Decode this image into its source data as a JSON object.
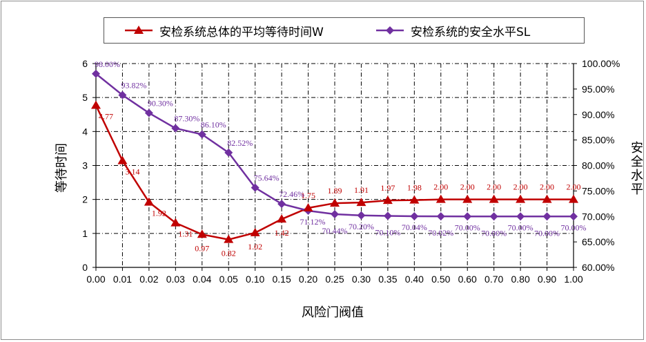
{
  "chart_data": {
    "type": "line",
    "categories": [
      "0.00",
      "0.01",
      "0.02",
      "0.03",
      "0.04",
      "0.05",
      "0.10",
      "0.15",
      "0.20",
      "0.25",
      "0.30",
      "0.35",
      "0.40",
      "0.50",
      "0.60",
      "0.70",
      "0.80",
      "0.90",
      "1.00"
    ],
    "xlabel": "风险门阀值",
    "ylabel": "等待时间",
    "y2label": "安全水平",
    "ylim": [
      0,
      6
    ],
    "y2lim": [
      60,
      100
    ],
    "yticks": [
      "0",
      "1",
      "2",
      "3",
      "4",
      "5",
      "6"
    ],
    "y2ticks": [
      "60.00%",
      "65.00%",
      "70.00%",
      "75.00%",
      "80.00%",
      "85.00%",
      "90.00%",
      "95.00%",
      "100.00%"
    ],
    "grid": true,
    "legend_position": "top",
    "series": [
      {
        "name": "安检系统总体的平均等待时间W",
        "axis": "left",
        "color": "#c00000",
        "marker": "triangle",
        "values": [
          4.77,
          3.14,
          1.92,
          1.31,
          0.97,
          0.82,
          1.02,
          1.42,
          1.75,
          1.89,
          1.91,
          1.97,
          1.98,
          2.0,
          2.0,
          2.0,
          2.0,
          2.0,
          2.0
        ],
        "labels": [
          "4.77",
          "3.14",
          "1.92",
          "1.31",
          "0.97",
          "0.82",
          "1.02",
          "1.42",
          "1.75",
          "1.89",
          "1.91",
          "1.97",
          "1.98",
          "2.00",
          "2.00",
          "2.00",
          "2.00",
          "2.00",
          "2.00"
        ]
      },
      {
        "name": "安检系统的安全水平SL",
        "axis": "right",
        "color": "#7030a0",
        "marker": "diamond",
        "values": [
          98.0,
          93.82,
          90.3,
          87.3,
          86.1,
          82.52,
          75.64,
          72.46,
          71.12,
          70.44,
          70.2,
          70.1,
          70.04,
          70.02,
          70.0,
          70.0,
          70.0,
          70.0,
          70.0
        ],
        "labels": [
          "98.00%",
          "93.82%",
          "90.30%",
          "87.30%",
          "86.10%",
          "82.52%",
          "75.64%",
          "72.46%",
          "71.12%",
          "70.44%",
          "70.20%",
          "70.10%",
          "70.04%",
          "70.02%",
          "70.00%",
          "70.00%",
          "70.00%",
          "70.00%",
          "70.00%"
        ]
      }
    ]
  }
}
